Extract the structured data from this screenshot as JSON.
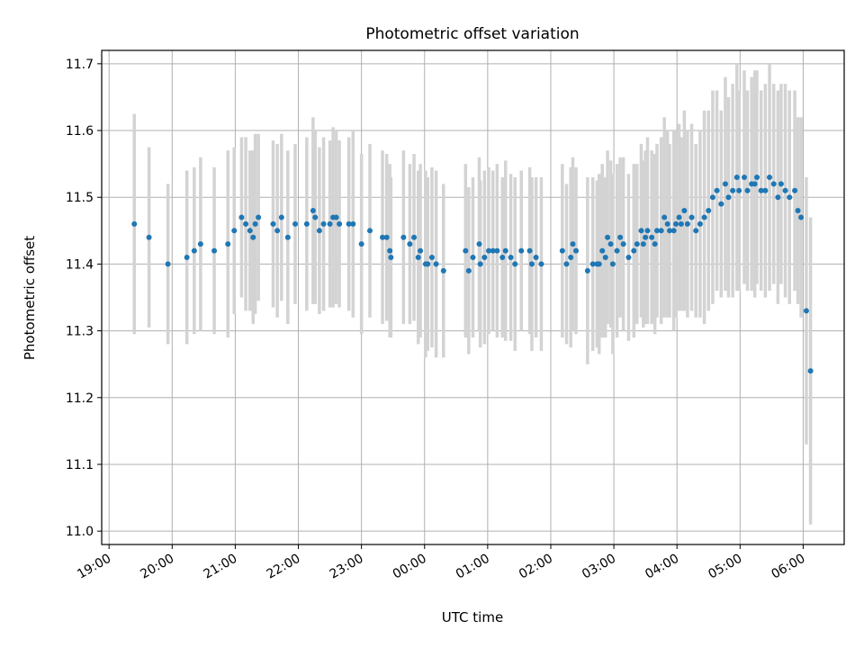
{
  "chart_data": {
    "type": "scatter",
    "title": "Photometric offset variation",
    "xlabel": "UTC time",
    "ylabel": "Photometric offset",
    "grid": true,
    "colors": {
      "points": "#1f77b4",
      "errorbars": "#d3d3d3",
      "grid": "#b0b0b0"
    },
    "x_ticks": [
      "19:00",
      "20:00",
      "21:00",
      "22:00",
      "23:00",
      "00:00",
      "01:00",
      "02:00",
      "03:00",
      "04:00",
      "05:00",
      "06:00"
    ],
    "y_ticks": [
      "11.0",
      "11.1",
      "11.2",
      "11.3",
      "11.4",
      "11.5",
      "11.6",
      "11.7"
    ],
    "xlim": [
      "18:53",
      "06:39"
    ],
    "ylim": [
      10.98,
      11.72
    ],
    "series": [
      {
        "x": [
          "19:24",
          "19:38",
          "19:56",
          "20:14",
          "20:21",
          "20:27",
          "20:40",
          "20:53",
          "20:59",
          "21:06",
          "21:10",
          "21:14",
          "21:17",
          "21:19",
          "21:22",
          "21:36",
          "21:40",
          "21:44",
          "21:50",
          "21:57",
          "22:08",
          "22:14",
          "22:16",
          "22:20",
          "22:24",
          "22:30",
          "22:33",
          "22:36",
          "22:39",
          "22:48",
          "22:52",
          "23:00",
          "23:08",
          "23:20",
          "23:24",
          "23:27",
          "23:28",
          "23:40",
          "23:46",
          "23:50",
          "23:54",
          "23:56",
          "24:01",
          "24:03",
          "24:07",
          "24:11",
          "24:18",
          "24:39",
          "24:42",
          "24:46",
          "24:52",
          "24:53",
          "24:57",
          "25:01",
          "25:05",
          "25:09",
          "25:14",
          "25:17",
          "25:22",
          "25:26",
          "25:32",
          "25:40",
          "25:42",
          "25:46",
          "25:51",
          "26:11",
          "26:15",
          "26:19",
          "26:21",
          "26:24",
          "26:35",
          "26:40",
          "26:44",
          "26:46",
          "26:49",
          "26:52",
          "26:54",
          "26:57",
          "26:59",
          "27:03",
          "27:06",
          "27:09",
          "27:14",
          "27:19",
          "27:22",
          "27:26",
          "27:28",
          "27:30",
          "27:32",
          "27:36",
          "27:39",
          "27:41",
          "27:45",
          "27:48",
          "27:51",
          "27:53",
          "27:57",
          "27:59",
          "28:02",
          "28:04",
          "28:07",
          "28:10",
          "28:14",
          "28:18",
          "28:22",
          "28:26",
          "28:30",
          "28:34",
          "28:38",
          "28:42",
          "28:46",
          "28:49",
          "28:53",
          "28:57",
          "28:59",
          "29:04",
          "29:07",
          "29:11",
          "29:14",
          "29:16",
          "29:20",
          "29:24",
          "29:28",
          "29:32",
          "29:36",
          "29:39",
          "29:43",
          "29:47",
          "29:52",
          "29:55",
          "29:58",
          "30:03",
          "30:07"
        ],
        "y": [
          11.46,
          11.44,
          11.4,
          11.41,
          11.42,
          11.43,
          11.42,
          11.43,
          11.45,
          11.47,
          11.46,
          11.45,
          11.44,
          11.46,
          11.47,
          11.46,
          11.45,
          11.47,
          11.44,
          11.46,
          11.46,
          11.48,
          11.47,
          11.45,
          11.46,
          11.46,
          11.47,
          11.47,
          11.46,
          11.46,
          11.46,
          11.43,
          11.45,
          11.44,
          11.44,
          11.42,
          11.41,
          11.44,
          11.43,
          11.44,
          11.41,
          11.42,
          11.4,
          11.4,
          11.41,
          11.4,
          11.39,
          11.42,
          11.39,
          11.41,
          11.43,
          11.4,
          11.41,
          11.42,
          11.42,
          11.42,
          11.41,
          11.42,
          11.41,
          11.4,
          11.42,
          11.42,
          11.4,
          11.41,
          11.4,
          11.42,
          11.4,
          11.41,
          11.43,
          11.42,
          11.39,
          11.4,
          11.4,
          11.4,
          11.42,
          11.41,
          11.44,
          11.43,
          11.4,
          11.42,
          11.44,
          11.43,
          11.41,
          11.42,
          11.43,
          11.45,
          11.43,
          11.44,
          11.45,
          11.44,
          11.43,
          11.45,
          11.45,
          11.47,
          11.46,
          11.45,
          11.45,
          11.46,
          11.47,
          11.46,
          11.48,
          11.46,
          11.47,
          11.45,
          11.46,
          11.47,
          11.48,
          11.5,
          11.51,
          11.49,
          11.52,
          11.5,
          11.51,
          11.53,
          11.51,
          11.53,
          11.51,
          11.52,
          11.52,
          11.53,
          11.51,
          11.51,
          11.53,
          11.52,
          11.5,
          11.52,
          11.51,
          11.5,
          11.51,
          11.48,
          11.47,
          11.33,
          11.24
        ],
        "err": [
          0.165,
          0.135,
          0.12,
          0.13,
          0.125,
          0.13,
          0.125,
          0.14,
          0.125,
          0.12,
          0.13,
          0.12,
          0.13,
          0.135,
          0.125,
          0.125,
          0.13,
          0.125,
          0.13,
          0.12,
          0.13,
          0.14,
          0.13,
          0.125,
          0.13,
          0.125,
          0.135,
          0.13,
          0.125,
          0.13,
          0.14,
          0.135,
          0.13,
          0.13,
          0.125,
          0.13,
          0.12,
          0.13,
          0.12,
          0.125,
          0.13,
          0.13,
          0.14,
          0.13,
          0.135,
          0.14,
          0.13,
          0.13,
          0.125,
          0.12,
          0.13,
          0.125,
          0.13,
          0.125,
          0.12,
          0.13,
          0.12,
          0.135,
          0.125,
          0.13,
          0.12,
          0.125,
          0.13,
          0.12,
          0.13,
          0.13,
          0.12,
          0.135,
          0.13,
          0.125,
          0.14,
          0.13,
          0.125,
          0.135,
          0.13,
          0.12,
          0.13,
          0.125,
          0.135,
          0.13,
          0.12,
          0.13,
          0.125,
          0.13,
          0.12,
          0.13,
          0.125,
          0.13,
          0.14,
          0.13,
          0.135,
          0.13,
          0.14,
          0.15,
          0.14,
          0.13,
          0.15,
          0.14,
          0.14,
          0.13,
          0.15,
          0.14,
          0.14,
          0.13,
          0.14,
          0.16,
          0.15,
          0.16,
          0.15,
          0.14,
          0.16,
          0.15,
          0.16,
          0.17,
          0.15,
          0.16,
          0.15,
          0.16,
          0.17,
          0.16,
          0.15,
          0.16,
          0.17,
          0.15,
          0.16,
          0.15,
          0.16,
          0.16,
          0.15,
          0.14,
          0.15,
          0.2,
          0.23
        ]
      }
    ]
  }
}
